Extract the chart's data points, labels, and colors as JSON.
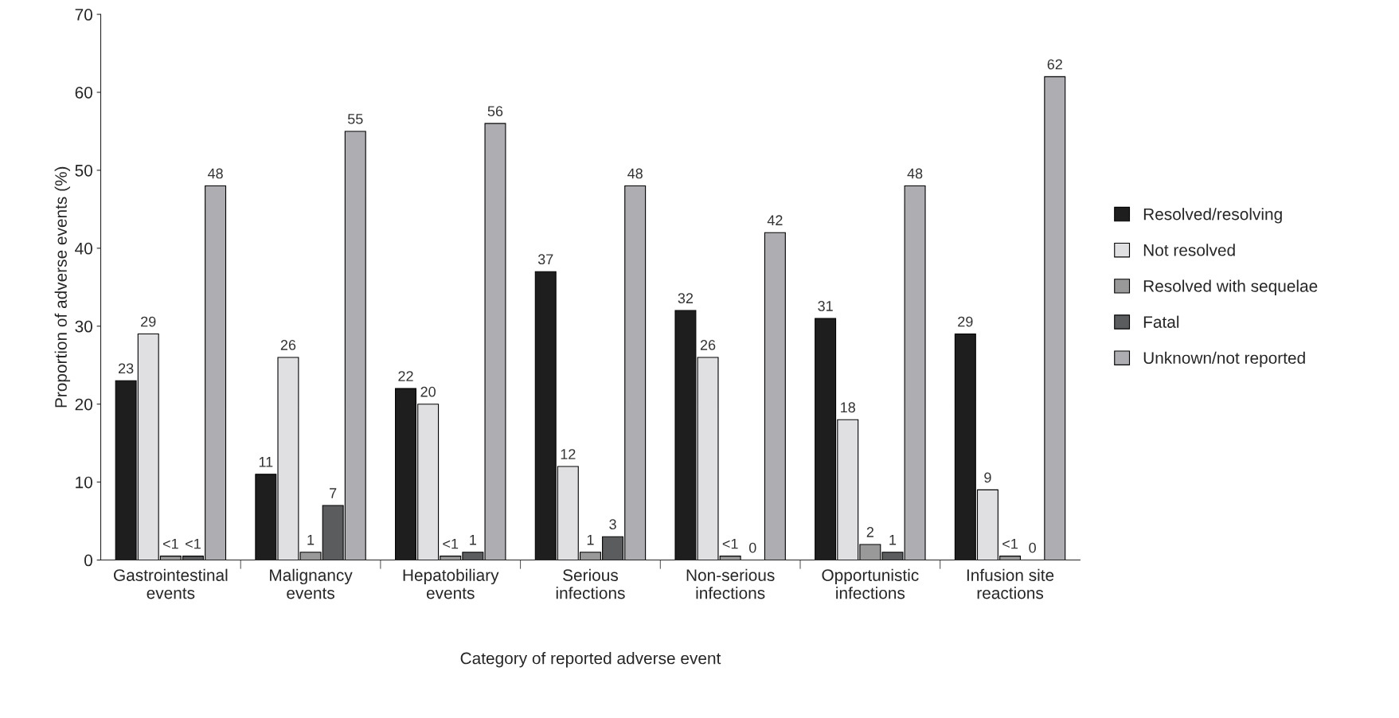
{
  "chart_data": {
    "type": "bar",
    "xlabel": "Category of reported adverse event",
    "ylabel": "Proportion of adverse events (%)",
    "categories": [
      "Gastrointestinal\nevents",
      "Malignancy\nevents",
      "Hepatobiliary\nevents",
      "Serious\ninfections",
      "Non-serious\ninfections",
      "Opportunistic\ninfections",
      "Infusion site\nreactions"
    ],
    "series": [
      {
        "name": "Resolved/resolving",
        "color": "#1e1e1e",
        "values": [
          23,
          11,
          22,
          37,
          32,
          31,
          29
        ],
        "value_labels": [
          "23",
          "11",
          "22",
          "37",
          "32",
          "31",
          "29"
        ]
      },
      {
        "name": "Not resolved",
        "color": "#e0e0e2",
        "values": [
          29,
          26,
          20,
          12,
          26,
          18,
          9
        ],
        "value_labels": [
          "29",
          "26",
          "20",
          "12",
          "26",
          "18",
          "9"
        ]
      },
      {
        "name": "Resolved with sequelae",
        "color": "#999999",
        "values": [
          0.5,
          1,
          0.5,
          1,
          0.5,
          2,
          0.5
        ],
        "value_labels": [
          "<1",
          "1",
          "<1",
          "1",
          "<1",
          "2",
          "<1"
        ]
      },
      {
        "name": "Fatal",
        "color": "#5a5c5e",
        "values": [
          0.5,
          7,
          1,
          3,
          0,
          1,
          0
        ],
        "value_labels": [
          "<1",
          "7",
          "1",
          "3",
          "0",
          "1",
          "0"
        ]
      },
      {
        "name": "Unknown/not reported",
        "color": "#aeaeb2",
        "values": [
          48,
          55,
          56,
          48,
          42,
          48,
          62
        ],
        "value_labels": [
          "48",
          "55",
          "56",
          "48",
          "42",
          "48",
          "62"
        ]
      }
    ],
    "ylim": [
      0,
      70
    ],
    "yticks": [
      0,
      10,
      20,
      30,
      40,
      50,
      60,
      70
    ],
    "grid": false,
    "legend": "right"
  }
}
